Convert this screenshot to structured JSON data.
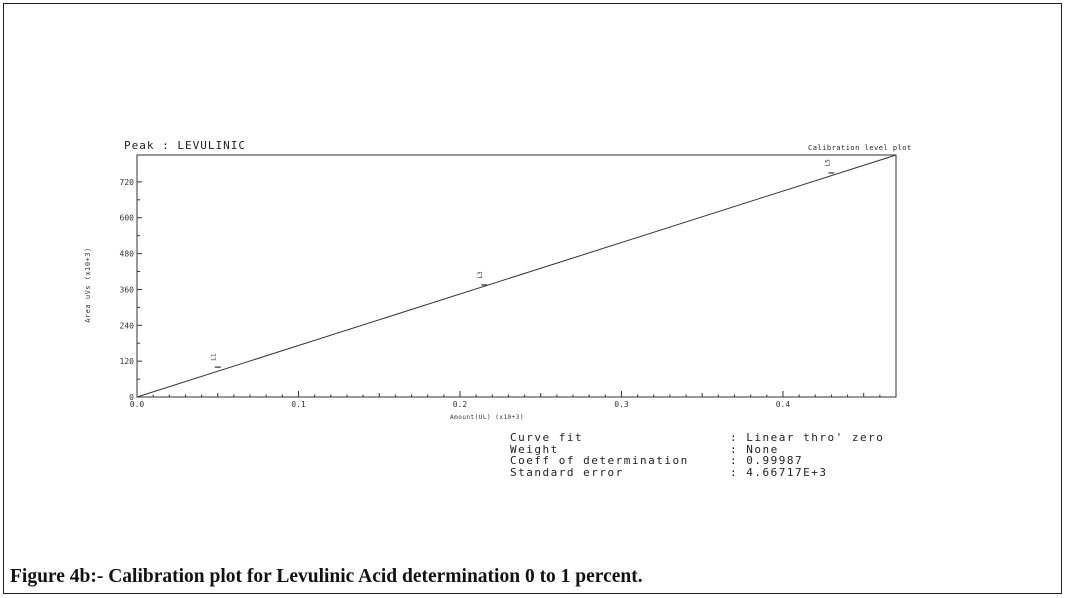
{
  "chart_data": {
    "type": "line",
    "peak_label": "Peak : LEVULINIC",
    "plot_title": "Calibration level plot",
    "xlabel": "Amount(UL)  (x10+3)",
    "ylabel": "Area uVs  (x10+3)",
    "xlim": [
      0.0,
      0.47
    ],
    "ylim": [
      0,
      810
    ],
    "x_ticks": [
      "0.0",
      "0.1",
      "0.2",
      "0.3",
      "0.4"
    ],
    "y_ticks": [
      "0",
      "120",
      "240",
      "360",
      "480",
      "600",
      "720"
    ],
    "fit_line": {
      "x": [
        0.0,
        0.47
      ],
      "y": [
        0,
        810
      ]
    },
    "points": [
      {
        "x": 0.05,
        "y": 100,
        "label": "L1"
      },
      {
        "x": 0.215,
        "y": 375,
        "label": "L3"
      },
      {
        "x": 0.43,
        "y": 750,
        "label": "L5"
      }
    ],
    "stats": [
      {
        "key": "Curve fit",
        "value": ": Linear thro' zero"
      },
      {
        "key": "Weight",
        "value": ": None"
      },
      {
        "key": "Coeff of determination",
        "value": ": 0.99987"
      },
      {
        "key": "Standard error",
        "value": ": 4.66717E+3"
      }
    ]
  },
  "caption": "Figure 4b:- Calibration plot for Levulinic Acid determination 0 to 1 percent."
}
